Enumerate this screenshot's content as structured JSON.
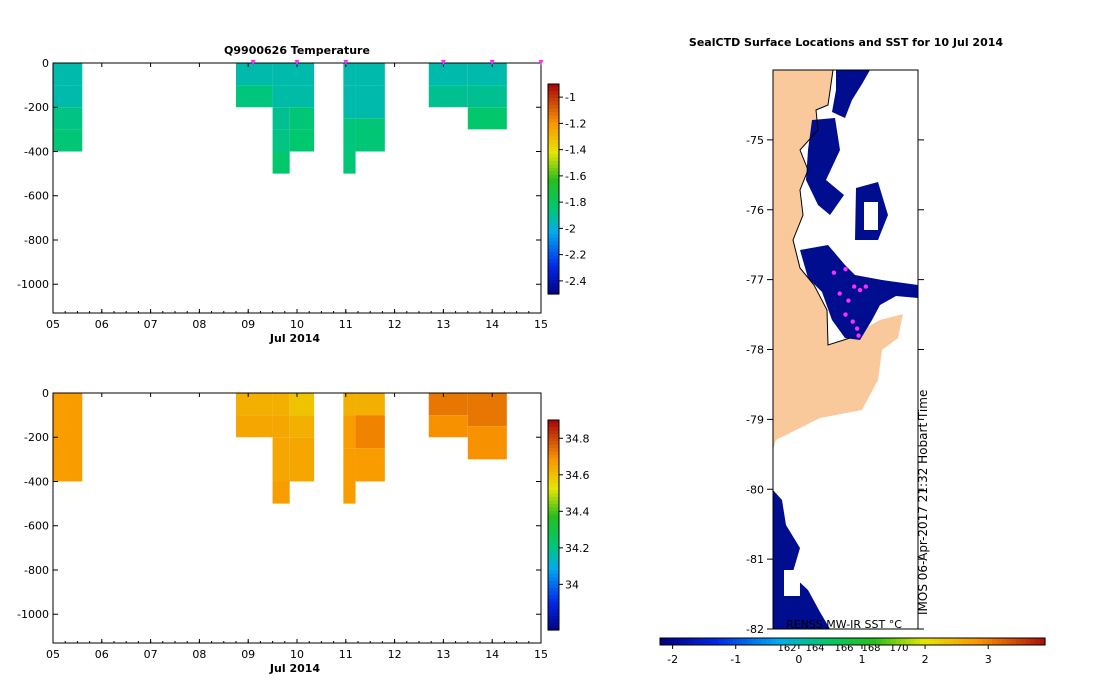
{
  "chart_data": [
    {
      "type": "heatmap",
      "title": "Q9900626  Temperature",
      "xlabel": "Jul 2014",
      "ylabel": "",
      "xlim": [
        5,
        15
      ],
      "ylim": [
        -1130,
        0
      ],
      "x_tick_labels": [
        "05",
        "06",
        "07",
        "08",
        "09",
        "10",
        "11",
        "12",
        "13",
        "14",
        "15"
      ],
      "x_ticks": [
        5,
        6,
        7,
        8,
        9,
        10,
        11,
        12,
        13,
        14,
        15
      ],
      "y_ticks": [
        0,
        -200,
        -400,
        -600,
        -800,
        -1000
      ],
      "y_tick_labels": [
        "0",
        "-200",
        "-400",
        "-600",
        "-800",
        "-1000"
      ],
      "colorbar": {
        "min": -2.5,
        "max": -0.9,
        "tick_values": [
          -1,
          -1.2,
          -1.4,
          -1.6,
          -1.8,
          -2,
          -2.2,
          -2.4
        ],
        "tick_labels": [
          "-1",
          "-1.2",
          "-1.4",
          "-1.6",
          "-1.8",
          "-2",
          "-2.2",
          "-2.4"
        ]
      },
      "profile_markers_x": [
        9.1,
        10.0,
        11.0,
        13.0,
        14.0,
        15.0
      ],
      "cells": [
        {
          "x0": 5.0,
          "x1": 5.6,
          "y0": 0,
          "y1": -100,
          "value": -1.92
        },
        {
          "x0": 5.0,
          "x1": 5.6,
          "y0": -100,
          "y1": -200,
          "value": -1.92
        },
        {
          "x0": 5.0,
          "x1": 5.6,
          "y0": -200,
          "y1": -300,
          "value": -1.86
        },
        {
          "x0": 5.0,
          "x1": 5.6,
          "y0": -300,
          "y1": -400,
          "value": -1.84
        },
        {
          "x0": 8.75,
          "x1": 9.5,
          "y0": 0,
          "y1": -100,
          "value": -1.92
        },
        {
          "x0": 8.75,
          "x1": 9.5,
          "y0": -100,
          "y1": -200,
          "value": -1.85
        },
        {
          "x0": 9.5,
          "x1": 10.35,
          "y0": 0,
          "y1": -100,
          "value": -1.92
        },
        {
          "x0": 9.5,
          "x1": 10.35,
          "y0": -100,
          "y1": -200,
          "value": -1.91
        },
        {
          "x0": 9.5,
          "x1": 9.85,
          "y0": -200,
          "y1": -300,
          "value": -1.88
        },
        {
          "x0": 9.85,
          "x1": 10.35,
          "y0": -200,
          "y1": -300,
          "value": -1.84
        },
        {
          "x0": 9.5,
          "x1": 9.85,
          "y0": -300,
          "y1": -400,
          "value": -1.86
        },
        {
          "x0": 9.85,
          "x1": 10.35,
          "y0": -300,
          "y1": -400,
          "value": -1.83
        },
        {
          "x0": 9.5,
          "x1": 9.85,
          "y0": -400,
          "y1": -500,
          "value": -1.82
        },
        {
          "x0": 10.95,
          "x1": 11.2,
          "y0": 0,
          "y1": -100,
          "value": -1.92
        },
        {
          "x0": 11.2,
          "x1": 11.8,
          "y0": 0,
          "y1": -100,
          "value": -1.92
        },
        {
          "x0": 10.95,
          "x1": 11.2,
          "y0": -100,
          "y1": -250,
          "value": -1.92
        },
        {
          "x0": 11.2,
          "x1": 11.8,
          "y0": -100,
          "y1": -250,
          "value": -1.92
        },
        {
          "x0": 10.95,
          "x1": 11.2,
          "y0": -250,
          "y1": -400,
          "value": -1.85
        },
        {
          "x0": 11.2,
          "x1": 11.8,
          "y0": -250,
          "y1": -400,
          "value": -1.84
        },
        {
          "x0": 10.95,
          "x1": 11.2,
          "y0": -400,
          "y1": -500,
          "value": -1.84
        },
        {
          "x0": 12.7,
          "x1": 13.5,
          "y0": 0,
          "y1": -100,
          "value": -1.92
        },
        {
          "x0": 12.7,
          "x1": 13.5,
          "y0": -100,
          "y1": -200,
          "value": -1.88
        },
        {
          "x0": 13.5,
          "x1": 14.3,
          "y0": 0,
          "y1": -100,
          "value": -1.92
        },
        {
          "x0": 13.5,
          "x1": 14.3,
          "y0": -100,
          "y1": -200,
          "value": -1.88
        },
        {
          "x0": 13.5,
          "x1": 14.3,
          "y0": -200,
          "y1": -300,
          "value": -1.82
        }
      ]
    },
    {
      "type": "heatmap",
      "title": "",
      "xlabel": "Jul 2014",
      "ylabel": "",
      "xlim": [
        5,
        15
      ],
      "ylim": [
        -1130,
        0
      ],
      "x_tick_labels": [
        "05",
        "06",
        "07",
        "08",
        "09",
        "10",
        "11",
        "12",
        "13",
        "14",
        "15"
      ],
      "x_ticks": [
        5,
        6,
        7,
        8,
        9,
        10,
        11,
        12,
        13,
        14,
        15
      ],
      "y_ticks": [
        0,
        -200,
        -400,
        -600,
        -800,
        -1000
      ],
      "y_tick_labels": [
        "0",
        "-200",
        "-400",
        "-600",
        "-800",
        "-1000"
      ],
      "colorbar": {
        "min": 33.75,
        "max": 34.9,
        "tick_values": [
          34.8,
          34.6,
          34.4,
          34.2,
          34
        ],
        "tick_labels": [
          "34.8",
          "34.6",
          "34.4",
          "34.2",
          "34"
        ]
      },
      "cells": [
        {
          "x0": 5.0,
          "x1": 5.6,
          "y0": 0,
          "y1": -400,
          "value": 34.68
        },
        {
          "x0": 8.75,
          "x1": 9.5,
          "y0": 0,
          "y1": -100,
          "value": 34.64
        },
        {
          "x0": 8.75,
          "x1": 9.5,
          "y0": -100,
          "y1": -200,
          "value": 34.66
        },
        {
          "x0": 9.5,
          "x1": 9.85,
          "y0": 0,
          "y1": -100,
          "value": 34.64
        },
        {
          "x0": 9.85,
          "x1": 10.35,
          "y0": 0,
          "y1": -100,
          "value": 34.6
        },
        {
          "x0": 9.5,
          "x1": 9.85,
          "y0": -100,
          "y1": -200,
          "value": 34.66
        },
        {
          "x0": 9.85,
          "x1": 10.35,
          "y0": -100,
          "y1": -200,
          "value": 34.64
        },
        {
          "x0": 9.5,
          "x1": 9.85,
          "y0": -200,
          "y1": -400,
          "value": 34.66
        },
        {
          "x0": 9.85,
          "x1": 10.35,
          "y0": -200,
          "y1": -400,
          "value": 34.66
        },
        {
          "x0": 9.5,
          "x1": 9.85,
          "y0": -400,
          "y1": -500,
          "value": 34.68
        },
        {
          "x0": 10.95,
          "x1": 11.2,
          "y0": 0,
          "y1": -100,
          "value": 34.64
        },
        {
          "x0": 11.2,
          "x1": 11.8,
          "y0": 0,
          "y1": -100,
          "value": 34.64
        },
        {
          "x0": 10.95,
          "x1": 11.2,
          "y0": -100,
          "y1": -250,
          "value": 34.68
        },
        {
          "x0": 11.2,
          "x1": 11.8,
          "y0": -100,
          "y1": -250,
          "value": 34.72
        },
        {
          "x0": 10.95,
          "x1": 11.2,
          "y0": -250,
          "y1": -400,
          "value": 34.68
        },
        {
          "x0": 11.2,
          "x1": 11.8,
          "y0": -250,
          "y1": -400,
          "value": 34.68
        },
        {
          "x0": 10.95,
          "x1": 11.2,
          "y0": -400,
          "y1": -500,
          "value": 34.68
        },
        {
          "x0": 12.7,
          "x1": 13.5,
          "y0": 0,
          "y1": -100,
          "value": 34.74
        },
        {
          "x0": 12.7,
          "x1": 13.5,
          "y0": -100,
          "y1": -200,
          "value": 34.7
        },
        {
          "x0": 13.5,
          "x1": 14.3,
          "y0": 0,
          "y1": -150,
          "value": 34.74
        },
        {
          "x0": 13.5,
          "x1": 14.3,
          "y0": -150,
          "y1": -300,
          "value": 34.7
        }
      ]
    },
    {
      "type": "map",
      "title": "SealCTD Surface Locations and SST for 10 Jul 2014",
      "ylim": [
        -82,
        -74
      ],
      "y_ticks": [
        -75,
        -76,
        -77,
        -78,
        -79,
        -80,
        -81,
        -82
      ],
      "y_tick_labels": [
        "-75",
        "-76",
        "-77",
        "-78",
        "-79",
        "-80",
        "-81",
        "-82"
      ],
      "colorbar_label": "RENSS MW-IR SST °C",
      "colorbar": {
        "min": -2.2,
        "max": 3.9,
        "tick_values": [
          -2,
          -1,
          0,
          1,
          2,
          3
        ],
        "tick_labels": [
          "-2",
          "-1",
          "0",
          "1",
          "2",
          "3"
        ]
      },
      "overlay_axis_labels": [
        "162",
        "164",
        "166",
        "168",
        "170"
      ],
      "credit": "IMOS 06-Apr-2017 21:32 Hobart Time",
      "seal_positions": [
        {
          "lon": 0.52,
          "lat": -77.3
        },
        {
          "lon": 0.5,
          "lat": -77.5
        },
        {
          "lon": 0.56,
          "lat": -77.1
        },
        {
          "lon": 0.6,
          "lat": -77.15
        },
        {
          "lon": 0.64,
          "lat": -77.1
        },
        {
          "lon": 0.55,
          "lat": -77.6
        },
        {
          "lon": 0.58,
          "lat": -77.7
        },
        {
          "lon": 0.59,
          "lat": -77.8
        },
        {
          "lon": 0.42,
          "lat": -76.9
        },
        {
          "lon": 0.5,
          "lat": -76.85
        },
        {
          "lon": 0.46,
          "lat": -77.2
        }
      ]
    }
  ],
  "colors": {
    "land": "#f9c99b",
    "ocean": "#000d8f",
    "marker": "#ff2bff"
  }
}
